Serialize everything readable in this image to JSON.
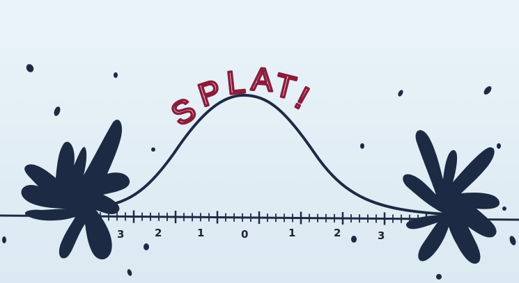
{
  "drawing": {
    "title_letters": [
      "S",
      "P",
      "L",
      "A",
      "T",
      "!"
    ],
    "axis_tick_labels": [
      "3",
      "2",
      "1",
      "0",
      "1",
      "2",
      "3"
    ],
    "colors": {
      "paper": "#e4eff6",
      "ink": "#1d2a44",
      "title_ink": "#8c1b3a"
    }
  }
}
